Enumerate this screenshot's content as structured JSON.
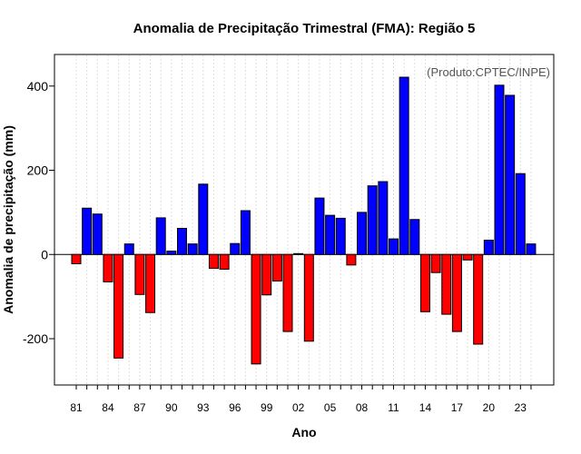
{
  "chart_data": {
    "type": "bar",
    "title": "Anomalia de Precipitação Trimestral (FMA): Região 5",
    "xlabel": "Ano",
    "ylabel": "Anomalia de precipitação (mm)",
    "credit": "(Produto:CPTEC/INPE)",
    "ylim": [
      -310,
      475
    ],
    "yticks": [
      -200,
      0,
      200,
      400
    ],
    "grid": true,
    "positive_color": "#0000ff",
    "negative_color": "#ff0000",
    "categories": [
      "81",
      "82",
      "83",
      "84",
      "85",
      "86",
      "87",
      "88",
      "89",
      "90",
      "91",
      "92",
      "93",
      "94",
      "95",
      "96",
      "97",
      "98",
      "99",
      "00",
      "01",
      "02",
      "03",
      "04",
      "05",
      "06",
      "07",
      "08",
      "09",
      "10",
      "11",
      "12",
      "13",
      "14",
      "15",
      "16",
      "17",
      "18",
      "19",
      "20",
      "21",
      "22",
      "23",
      "24"
    ],
    "xtick_labels": [
      "81",
      "84",
      "87",
      "90",
      "93",
      "96",
      "99",
      "02",
      "05",
      "08",
      "11",
      "14",
      "17",
      "20",
      "23"
    ],
    "values": [
      -22,
      110,
      96,
      -65,
      -246,
      25,
      -95,
      -138,
      87,
      8,
      62,
      25,
      167,
      -33,
      -35,
      26,
      104,
      -260,
      -96,
      -63,
      -183,
      2,
      -206,
      134,
      93,
      86,
      -25,
      100,
      163,
      173,
      37,
      421,
      83,
      -136,
      -43,
      -142,
      -183,
      -13,
      -213,
      34,
      402,
      378,
      192,
      25
    ]
  }
}
